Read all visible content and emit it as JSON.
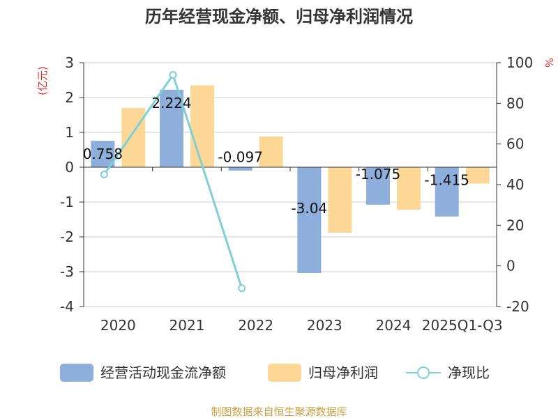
{
  "chart_data": {
    "type": "bar",
    "title": "历年经营现金净额、归母净利润情况",
    "categories": [
      "2020",
      "2021",
      "2022",
      "2023",
      "2024",
      "2025Q1-Q3"
    ],
    "series": [
      {
        "name": "经营活动现金流净额",
        "type": "bar",
        "axis": "left",
        "color": "#8eaedb",
        "values": [
          0.758,
          2.224,
          -0.097,
          -3.04,
          -1.075,
          -1.415
        ],
        "labels": [
          "0.758",
          "2.224",
          "-0.097",
          "-3.04",
          "-1.075",
          "-1.415"
        ]
      },
      {
        "name": "归母净利润",
        "type": "bar",
        "axis": "left",
        "color": "#fdd795",
        "values": [
          1.7,
          2.35,
          0.88,
          -1.88,
          -1.22,
          -0.47
        ]
      },
      {
        "name": "净现比",
        "type": "line",
        "axis": "right",
        "color": "#7fd0d6",
        "values": [
          45,
          94,
          -11,
          null,
          null,
          null
        ]
      }
    ],
    "left_axis": {
      "unit": "(亿元)",
      "ylim": [
        -4,
        3
      ],
      "ticks": [
        3,
        2,
        1,
        0,
        -1,
        -2,
        -3,
        -4
      ],
      "tick_labels": [
        "3",
        "2",
        "1",
        "0",
        "-1",
        "-2",
        "-3",
        "-4"
      ]
    },
    "right_axis": {
      "unit": "%",
      "ylim": [
        -20,
        100
      ],
      "ticks": [
        100,
        80,
        60,
        40,
        20,
        0,
        -20
      ],
      "tick_labels": [
        "100",
        "80",
        "60",
        "40",
        "20",
        "0",
        "-20"
      ]
    },
    "grid": true,
    "legend_position": "bottom"
  },
  "source": "制图数据来自恒生聚源数据库"
}
